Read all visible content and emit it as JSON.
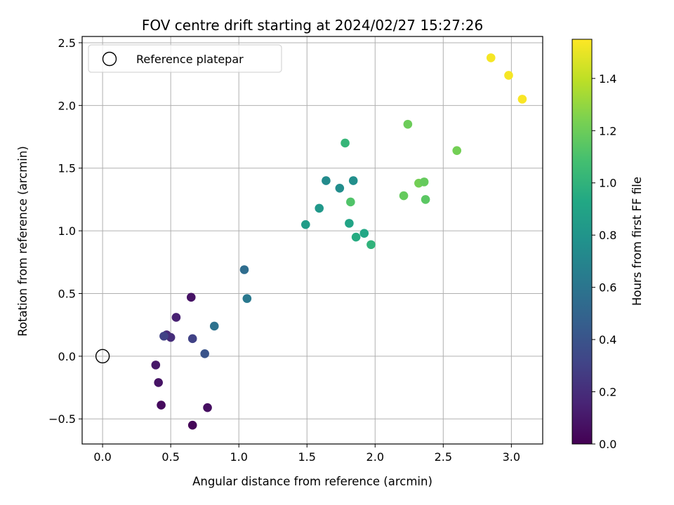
{
  "chart_data": {
    "type": "scatter",
    "title": "FOV centre drift starting at 2024/02/27 15:27:26",
    "xlabel": "Angular distance from reference (arcmin)",
    "ylabel": "Rotation from reference (arcmin)",
    "xlim": [
      -0.15,
      3.23
    ],
    "ylim": [
      -0.7,
      2.55
    ],
    "xticks": [
      0.0,
      0.5,
      1.0,
      1.5,
      2.0,
      2.5,
      3.0
    ],
    "xtick_labels": [
      "0.0",
      "0.5",
      "1.0",
      "1.5",
      "2.0",
      "2.5",
      "3.0"
    ],
    "yticks": [
      -0.5,
      0.0,
      0.5,
      1.0,
      1.5,
      2.0,
      2.5
    ],
    "ytick_labels": [
      "−0.5",
      "0.0",
      "0.5",
      "1.0",
      "1.5",
      "2.0",
      "2.5"
    ],
    "grid": true,
    "legend": {
      "placement": "top-left",
      "entries": [
        "Reference platepar"
      ]
    },
    "reference_point": {
      "x": 0.0,
      "y": 0.0,
      "label": "Reference platepar",
      "marker": "hollow-circle"
    },
    "colorbar": {
      "label": "Hours from first FF file",
      "colormap": "viridis",
      "range": [
        0.0,
        1.55
      ],
      "ticks": [
        0.0,
        0.2,
        0.4,
        0.6,
        0.8,
        1.0,
        1.2,
        1.4
      ],
      "tick_labels": [
        "0.0",
        "0.2",
        "0.4",
        "0.6",
        "0.8",
        "1.0",
        "1.2",
        "1.4"
      ]
    },
    "points": [
      {
        "x": 0.66,
        "y": -0.55,
        "hours": 0.02
      },
      {
        "x": 0.43,
        "y": -0.39,
        "hours": 0.04
      },
      {
        "x": 0.77,
        "y": -0.41,
        "hours": 0.06
      },
      {
        "x": 0.41,
        "y": -0.21,
        "hours": 0.08
      },
      {
        "x": 0.39,
        "y": -0.07,
        "hours": 0.1
      },
      {
        "x": 0.65,
        "y": 0.47,
        "hours": 0.08
      },
      {
        "x": 0.54,
        "y": 0.31,
        "hours": 0.14
      },
      {
        "x": 0.47,
        "y": 0.17,
        "hours": 0.18
      },
      {
        "x": 0.5,
        "y": 0.15,
        "hours": 0.2
      },
      {
        "x": 0.45,
        "y": 0.16,
        "hours": 0.3
      },
      {
        "x": 0.66,
        "y": 0.14,
        "hours": 0.3
      },
      {
        "x": 0.75,
        "y": 0.02,
        "hours": 0.4
      },
      {
        "x": 0.82,
        "y": 0.24,
        "hours": 0.58
      },
      {
        "x": 1.04,
        "y": 0.69,
        "hours": 0.55
      },
      {
        "x": 1.06,
        "y": 0.46,
        "hours": 0.62
      },
      {
        "x": 1.49,
        "y": 1.05,
        "hours": 0.85
      },
      {
        "x": 1.59,
        "y": 1.18,
        "hours": 0.82
      },
      {
        "x": 1.64,
        "y": 1.4,
        "hours": 0.74
      },
      {
        "x": 1.74,
        "y": 1.34,
        "hours": 0.75
      },
      {
        "x": 1.84,
        "y": 1.4,
        "hours": 0.76
      },
      {
        "x": 1.78,
        "y": 1.7,
        "hours": 1.02
      },
      {
        "x": 1.82,
        "y": 1.23,
        "hours": 1.12
      },
      {
        "x": 1.81,
        "y": 1.06,
        "hours": 0.9
      },
      {
        "x": 1.86,
        "y": 0.95,
        "hours": 0.95
      },
      {
        "x": 1.92,
        "y": 0.98,
        "hours": 0.92
      },
      {
        "x": 1.97,
        "y": 0.89,
        "hours": 1.0
      },
      {
        "x": 2.21,
        "y": 1.28,
        "hours": 1.18
      },
      {
        "x": 2.24,
        "y": 1.85,
        "hours": 1.2
      },
      {
        "x": 2.32,
        "y": 1.38,
        "hours": 1.22
      },
      {
        "x": 2.36,
        "y": 1.39,
        "hours": 1.18
      },
      {
        "x": 2.37,
        "y": 1.25,
        "hours": 1.15
      },
      {
        "x": 2.6,
        "y": 1.64,
        "hours": 1.22
      },
      {
        "x": 2.85,
        "y": 2.38,
        "hours": 1.53
      },
      {
        "x": 2.98,
        "y": 2.24,
        "hours": 1.53
      },
      {
        "x": 3.08,
        "y": 2.05,
        "hours": 1.54
      }
    ]
  }
}
